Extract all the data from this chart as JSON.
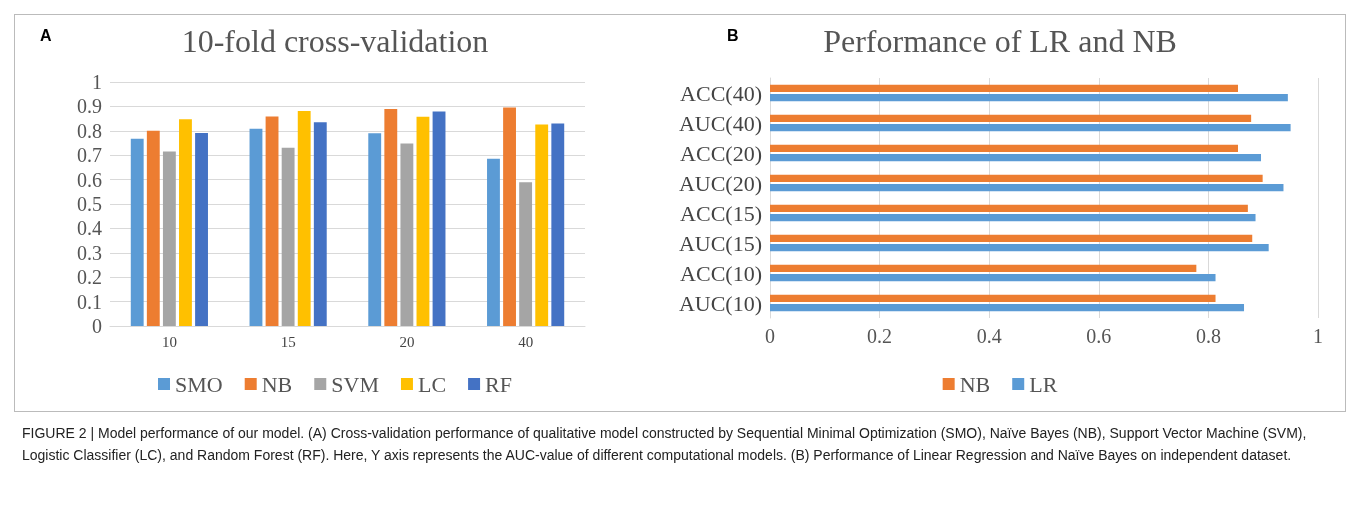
{
  "chart_data": [
    {
      "type": "bar",
      "title": "10-fold cross-validation",
      "annotations": [
        "A"
      ],
      "categories": [
        "10",
        "15",
        "20",
        "40"
      ],
      "series": [
        {
          "name": "SMO",
          "color": "#5b9bd5",
          "values": [
            0.767,
            0.808,
            0.79,
            0.685
          ]
        },
        {
          "name": "NB",
          "color": "#ed7d31",
          "values": [
            0.8,
            0.859,
            0.889,
            0.895
          ]
        },
        {
          "name": "SVM",
          "color": "#a5a5a5",
          "values": [
            0.715,
            0.731,
            0.748,
            0.589
          ]
        },
        {
          "name": "LC",
          "color": "#ffc000",
          "values": [
            0.847,
            0.881,
            0.858,
            0.826
          ]
        },
        {
          "name": "RF",
          "color": "#4472c4",
          "values": [
            0.791,
            0.835,
            0.879,
            0.83
          ]
        }
      ],
      "ylim": [
        0,
        1
      ],
      "yticks": [
        0,
        0.1,
        0.2,
        0.3,
        0.4,
        0.5,
        0.6,
        0.7,
        0.8,
        0.9,
        1
      ],
      "grid": "y",
      "legend": "bottom"
    },
    {
      "type": "bar",
      "orientation": "horizontal",
      "title": "Performance of LR and NB",
      "annotations": [
        "B",
        "FIGURE 2 | Model performance of our model. (A) Cross-validation performance of qualitative model constructed by Sequential Minimal Optimization (SMO), Naïve Bayes (NB), Support Vector Machine (SVM), Logistic Classifier (LC), and Random Forest (RF). Here, Y axis represents the AUC-value of different computational models. (B) Performance of Linear Regression and Naïve Bayes on independent dataset."
      ],
      "categories": [
        "ACC(40)",
        "AUC(40)",
        "ACC(20)",
        "AUC(20)",
        "ACC(15)",
        "AUC(15)",
        "ACC(10)",
        "AUC(10)"
      ],
      "series": [
        {
          "name": "NB",
          "color": "#ed7d31",
          "values": [
            0.854,
            0.878,
            0.854,
            0.899,
            0.872,
            0.88,
            0.778,
            0.813
          ]
        },
        {
          "name": "LR",
          "color": "#5b9bd5",
          "values": [
            0.945,
            0.95,
            0.896,
            0.937,
            0.886,
            0.91,
            0.813,
            0.865
          ]
        }
      ],
      "xlim": [
        0,
        1
      ],
      "xticks": [
        0,
        0.2,
        0.4,
        0.6,
        0.8,
        1
      ],
      "grid": "x",
      "legend": "bottom"
    }
  ]
}
